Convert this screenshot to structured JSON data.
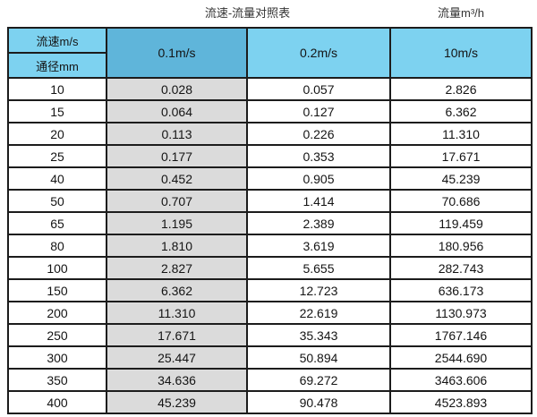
{
  "page": {
    "caption_left": "流速-流量对照表",
    "caption_right": "流量m³/h"
  },
  "table": {
    "corner": {
      "top_label": "流速m/s",
      "bottom_label": "通径mm"
    },
    "columns": [
      "0.1m/s",
      "0.2m/s",
      "10m/s"
    ],
    "rows": [
      {
        "diameter": "10",
        "values": [
          "0.028",
          "0.057",
          "2.826"
        ]
      },
      {
        "diameter": "15",
        "values": [
          "0.064",
          "0.127",
          "6.362"
        ]
      },
      {
        "diameter": "20",
        "values": [
          "0.113",
          "0.226",
          "11.310"
        ]
      },
      {
        "diameter": "25",
        "values": [
          "0.177",
          "0.353",
          "17.671"
        ]
      },
      {
        "diameter": "40",
        "values": [
          "0.452",
          "0.905",
          "45.239"
        ]
      },
      {
        "diameter": "50",
        "values": [
          "0.707",
          "1.414",
          "70.686"
        ]
      },
      {
        "diameter": "65",
        "values": [
          "1.195",
          "2.389",
          "119.459"
        ]
      },
      {
        "diameter": "80",
        "values": [
          "1.810",
          "3.619",
          "180.956"
        ]
      },
      {
        "diameter": "100",
        "values": [
          "2.827",
          "5.655",
          "282.743"
        ]
      },
      {
        "diameter": "150",
        "values": [
          "6.362",
          "12.723",
          "636.173"
        ]
      },
      {
        "diameter": "200",
        "values": [
          "11.310",
          "22.619",
          "1130.973"
        ]
      },
      {
        "diameter": "250",
        "values": [
          "17.671",
          "35.343",
          "1767.146"
        ]
      },
      {
        "diameter": "300",
        "values": [
          "25.447",
          "50.894",
          "2544.690"
        ]
      },
      {
        "diameter": "350",
        "values": [
          "34.636",
          "69.272",
          "3463.606"
        ]
      },
      {
        "diameter": "400",
        "values": [
          "45.239",
          "90.478",
          "4523.893"
        ]
      }
    ]
  },
  "colors": {
    "header_cyan": "#7dd2f0",
    "header_dark_blue": "#5fb5da",
    "column_gray": "#dbdbdb",
    "border": "#1c1c1c",
    "text": "#141414"
  }
}
